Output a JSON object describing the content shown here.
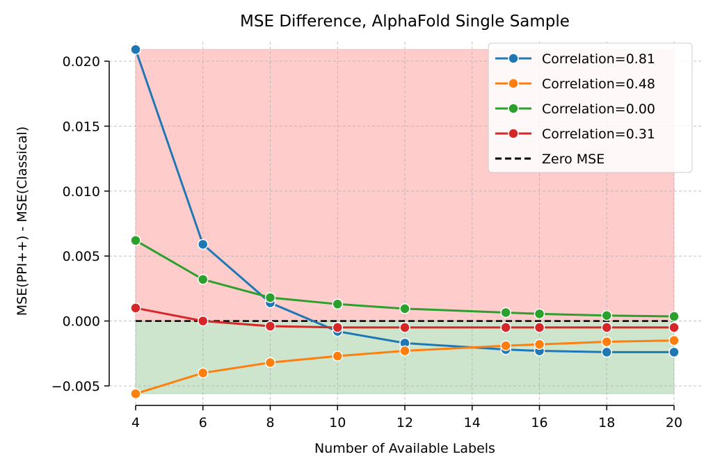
{
  "chart_data": {
    "type": "line",
    "title": "MSE Difference, AlphaFold Single Sample",
    "xlabel": "Number of Available Labels",
    "ylabel": "MSE(PPI++) - MSE(Classical)",
    "xlim": [
      4,
      20
    ],
    "ylim": [
      -0.0065,
      0.0215
    ],
    "x_ticks": [
      4,
      6,
      8,
      10,
      12,
      14,
      16,
      18,
      20
    ],
    "x_tick_labels": [
      "4",
      "6",
      "8",
      "10",
      "12",
      "14",
      "16",
      "18",
      "20"
    ],
    "y_ticks": [
      -0.005,
      0.0,
      0.005,
      0.01,
      0.015,
      0.02
    ],
    "y_tick_labels": [
      "−0.005",
      "0.000",
      "0.005",
      "0.010",
      "0.015",
      "0.020"
    ],
    "grid": true,
    "legend_position": "top-right",
    "x": [
      4,
      6,
      8,
      10,
      12,
      15,
      16,
      18,
      20
    ],
    "series": [
      {
        "name": "Correlation=0.81",
        "color": "#1f77b4",
        "values": [
          0.0209,
          0.0059,
          0.0014,
          -0.0008,
          -0.0017,
          -0.0022,
          -0.0023,
          -0.0024,
          -0.0024
        ]
      },
      {
        "name": "Correlation=0.48",
        "color": "#ff7f0e",
        "values": [
          -0.0056,
          -0.004,
          -0.0032,
          -0.0027,
          -0.0023,
          -0.0019,
          -0.0018,
          -0.0016,
          -0.0015
        ]
      },
      {
        "name": "Correlation=0.00",
        "color": "#2ca02c",
        "values": [
          0.0062,
          0.0032,
          0.0018,
          0.0013,
          0.00095,
          0.00065,
          0.00055,
          0.00042,
          0.00035
        ]
      },
      {
        "name": "Correlation=0.31",
        "color": "#d62728",
        "values": [
          0.001,
          0.0,
          -0.0004,
          -0.0005,
          -0.0005,
          -0.0005,
          -0.0005,
          -0.0005,
          -0.0005
        ]
      }
    ],
    "reference_line": {
      "name": "Zero MSE",
      "y": 0.0,
      "color": "#000000"
    },
    "shaded_regions": [
      {
        "label": "above",
        "y_from": 0.0,
        "y_to": 0.0209,
        "x_from": 4,
        "x_to": 20,
        "color": "#ff9999"
      },
      {
        "label": "below",
        "y_from": -0.0056,
        "y_to": 0.0,
        "x_from": 4,
        "x_to": 20,
        "color": "#99cc99"
      }
    ]
  }
}
